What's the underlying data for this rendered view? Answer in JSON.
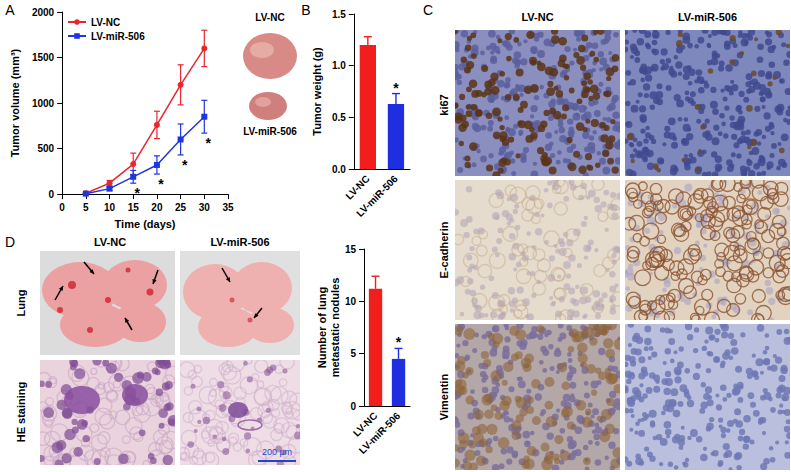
{
  "chart_data": [
    {
      "panel": "A",
      "type": "line",
      "x_label": "Time (days)",
      "y_label": "Tumor volume (mm³)",
      "x": [
        5,
        10,
        15,
        20,
        25,
        30
      ],
      "xlim": [
        0,
        35
      ],
      "xticks": [
        0,
        5,
        10,
        15,
        20,
        25,
        30,
        35
      ],
      "ylim": [
        0,
        2000
      ],
      "yticks": [
        0,
        500,
        1000,
        1500,
        2000
      ],
      "grid": false,
      "legend": "upper left",
      "series": [
        {
          "name": "LV-NC",
          "color": "#e8262e",
          "marker": "circle",
          "line_style": "solid",
          "values": [
            10,
            120,
            330,
            760,
            1200,
            1600
          ],
          "errors": [
            5,
            30,
            120,
            150,
            220,
            200
          ]
        },
        {
          "name": "LV-miR-506",
          "color": "#1f35e0",
          "marker": "square",
          "line_style": "solid",
          "values": [
            5,
            60,
            190,
            320,
            600,
            850
          ],
          "errors": [
            3,
            20,
            70,
            100,
            170,
            180
          ]
        }
      ],
      "annotations": [
        {
          "x": 15,
          "text": "*"
        },
        {
          "x": 20,
          "text": "*"
        },
        {
          "x": 25,
          "text": "*"
        },
        {
          "x": 30,
          "text": "*"
        }
      ]
    },
    {
      "panel": "B",
      "type": "bar",
      "y_label": "Tumor weight (g)",
      "categories": [
        "LV-NC",
        "LV-miR-506"
      ],
      "values": [
        1.2,
        0.63
      ],
      "errors": [
        0.08,
        0.1
      ],
      "colors": [
        "#f21d1d",
        "#1f2fe0"
      ],
      "ylim": [
        0,
        1.5
      ],
      "yticks": [
        {
          "value": 0,
          "label": "0.0"
        },
        {
          "value": 0.5,
          "label": "0.5"
        },
        {
          "value": 1,
          "label": "1.0"
        },
        {
          "value": 1.5,
          "label": "1.5"
        }
      ],
      "grid": false,
      "annotations": [
        {
          "category": "LV-miR-506",
          "text": "*"
        }
      ]
    },
    {
      "panel": "D",
      "type": "bar",
      "y_label": "Number of lung\nmetastatic nodules",
      "categories": [
        "LV-NC",
        "LV-miR-506"
      ],
      "values": [
        11.2,
        4.5
      ],
      "errors": [
        1.2,
        1.0
      ],
      "colors": [
        "#f21d1d",
        "#1f2fe0"
      ],
      "ylim": [
        0,
        15
      ],
      "yticks": [
        0,
        5,
        10,
        15
      ],
      "grid": false,
      "annotations": [
        {
          "category": "LV-miR-506",
          "text": "*"
        }
      ]
    }
  ],
  "images": {
    "tumor_photos": {
      "labels": [
        "LV-NC",
        "LV-miR-506"
      ]
    },
    "panel_C": {
      "panel": "C",
      "columns": [
        "LV-NC",
        "LV-miR-506"
      ],
      "rows": [
        "ki67",
        "E-cadherin",
        "Vimentin"
      ]
    },
    "panel_D": {
      "columns": [
        "LV-NC",
        "LV-miR-506"
      ],
      "rows": [
        "Lung",
        "HE staining"
      ],
      "scale_bar": "200 μm"
    }
  }
}
